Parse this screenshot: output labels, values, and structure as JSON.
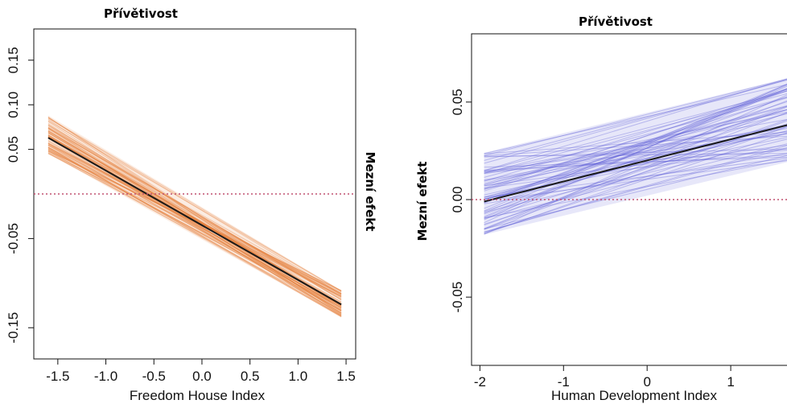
{
  "chart_data": [
    {
      "type": "line",
      "title": "Přívětivost",
      "xlabel": "Freedom House Index",
      "ylabel": "Mezní efekt",
      "xlim": [
        -1.75,
        1.6
      ],
      "ylim": [
        -0.185,
        0.185
      ],
      "x_ticks": [
        "-1.5",
        "-1.0",
        "-0.5",
        "0.0",
        "0.5",
        "1.0",
        "1.5"
      ],
      "y_ticks": [
        "0.15",
        "0.10",
        "0.05",
        "-0.05",
        "-0.15"
      ],
      "series": [
        {
          "role": "mean",
          "color": "#1a1a1a",
          "x": [
            -1.6,
            1.45
          ],
          "y": [
            0.063,
            -0.124
          ]
        },
        {
          "role": "reference",
          "color": "#c05070",
          "style": "dotted",
          "y": [
            0.0
          ]
        }
      ],
      "band": {
        "color": "#e67e3a",
        "x": [
          -1.6,
          1.45
        ],
        "y_upper": [
          0.088,
          -0.108
        ],
        "y_lower": [
          0.045,
          -0.138
        ]
      }
    },
    {
      "type": "line",
      "title": "Přívětivost",
      "xlabel": "Human Development Index",
      "ylabel": "Mezní efekt",
      "xlim": [
        -2.1,
        1.75
      ],
      "ylim": [
        -0.085,
        0.085
      ],
      "x_ticks": [
        "-2",
        "-1",
        "0",
        "1"
      ],
      "y_ticks": [
        "0.05",
        "0.00",
        "-0.05"
      ],
      "series": [
        {
          "role": "mean",
          "color": "#1a1a1a",
          "x": [
            -1.95,
            1.75
          ],
          "y": [
            -0.001,
            0.039
          ]
        },
        {
          "role": "reference",
          "color": "#c05070",
          "style": "dotted",
          "y": [
            0.0
          ]
        }
      ],
      "band": {
        "color": "#5b5bd6",
        "x": [
          -1.95,
          1.75
        ],
        "y_upper": [
          0.024,
          0.063
        ],
        "y_lower": [
          -0.018,
          0.02
        ]
      }
    }
  ]
}
